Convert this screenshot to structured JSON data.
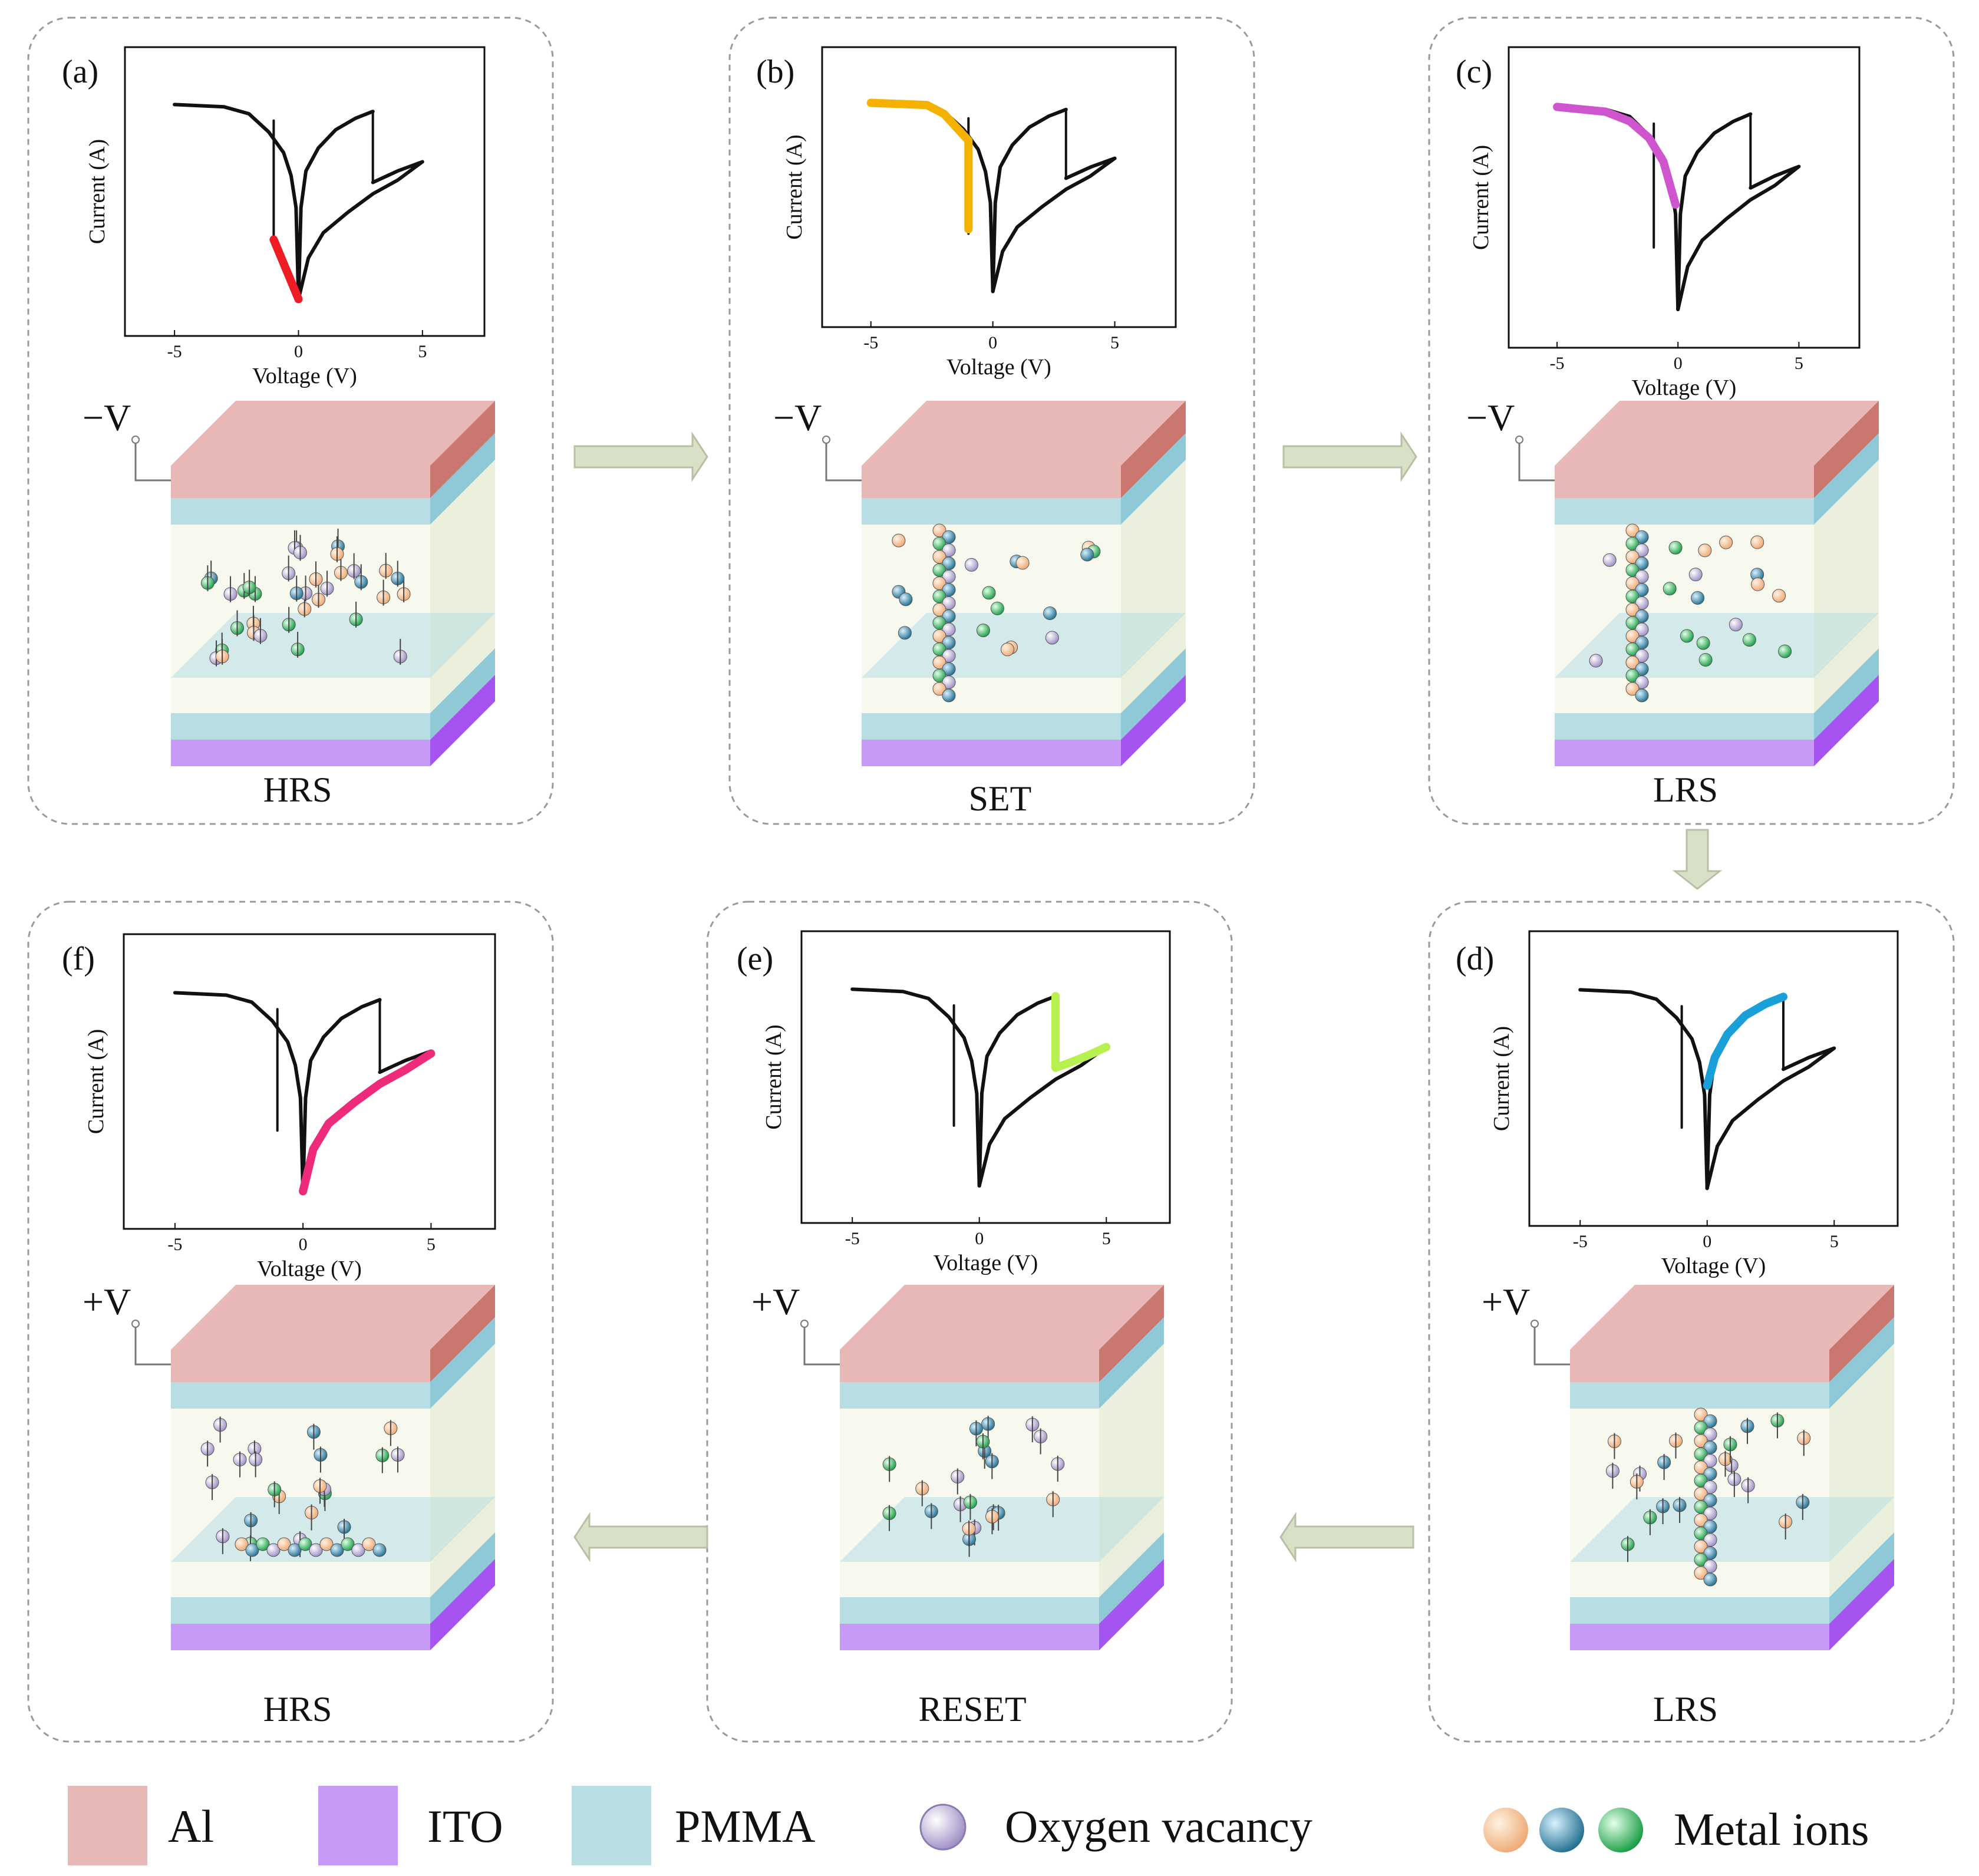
{
  "panels": [
    {
      "letter": "(a)",
      "state": "HRS",
      "bias": "−V",
      "highlight": "#ee1c25",
      "highlight_path": [
        [
          -1,
          -1.2
        ],
        [
          0,
          -2.5
        ]
      ]
    },
    {
      "letter": "(b)",
      "state": "SET",
      "bias": "−V",
      "highlight": "#f5b100",
      "highlight_path": [
        [
          -5,
          1.75
        ],
        [
          -2.7,
          1.7
        ],
        [
          -2.0,
          1.5
        ],
        [
          -1.0,
          0.9
        ],
        [
          -1.0,
          -1.1
        ]
      ]
    },
    {
      "letter": "(c)",
      "state": "LRS",
      "bias": "−V",
      "highlight": "#cf55cf",
      "highlight_path": [
        [
          -5,
          1.75
        ],
        [
          -3,
          1.65
        ],
        [
          -2,
          1.45
        ],
        [
          -1.2,
          1.1
        ],
        [
          -0.6,
          0.6
        ],
        [
          -0.1,
          -0.3
        ]
      ]
    },
    {
      "letter": "(d)",
      "state": "LRS",
      "bias": "+V",
      "highlight": "#1aa0d8",
      "highlight_path": [
        [
          0,
          -0.3
        ],
        [
          0.3,
          0.3
        ],
        [
          0.8,
          0.8
        ],
        [
          1.5,
          1.2
        ],
        [
          2.3,
          1.45
        ],
        [
          3,
          1.6
        ]
      ]
    },
    {
      "letter": "(e)",
      "state": "RESET",
      "bias": "+V",
      "highlight": "#b8f050",
      "highlight_path": [
        [
          3,
          1.6
        ],
        [
          3,
          0.05
        ],
        [
          3.5,
          0.15
        ],
        [
          4.2,
          0.3
        ],
        [
          5,
          0.5
        ]
      ]
    },
    {
      "letter": "(f)",
      "state": "HRS",
      "bias": "+V",
      "highlight": "#ee2a7b",
      "highlight_path": [
        [
          0,
          -2.5
        ],
        [
          0.4,
          -1.6
        ],
        [
          1,
          -1.05
        ],
        [
          2,
          -0.6
        ],
        [
          3,
          -0.2
        ],
        [
          4,
          0.1
        ],
        [
          5,
          0.45
        ]
      ]
    }
  ],
  "axes": {
    "xlabel": "Voltage (V)",
    "ylabel": "Current (A)",
    "xticks": [
      "-5",
      "0",
      "5"
    ],
    "xlim": [
      -7,
      7.5
    ]
  },
  "iv_curve": {
    "negative_branch": [
      [
        -5,
        1.75
      ],
      [
        -3,
        1.7
      ],
      [
        -2,
        1.55
      ],
      [
        -1.2,
        1.15
      ],
      [
        -0.6,
        0.7
      ],
      [
        -0.3,
        0.2
      ],
      [
        -0.1,
        -0.5
      ],
      [
        0,
        -2.5
      ]
    ],
    "set_jump": [
      [
        -1,
        -1.2
      ],
      [
        -1,
        1.4
      ]
    ],
    "positive_branch": [
      [
        0,
        -2.5
      ],
      [
        0.1,
        -0.5
      ],
      [
        0.3,
        0.3
      ],
      [
        0.8,
        0.8
      ],
      [
        1.5,
        1.2
      ],
      [
        2.3,
        1.45
      ],
      [
        3,
        1.6
      ]
    ],
    "reset_jump": [
      [
        3,
        1.6
      ],
      [
        3,
        0.05
      ]
    ],
    "hrs_branch": [
      [
        3,
        0.05
      ],
      [
        4,
        0.3
      ],
      [
        5,
        0.5
      ],
      [
        4,
        0.1
      ],
      [
        3,
        -0.2
      ],
      [
        2,
        -0.6
      ],
      [
        1,
        -1.05
      ],
      [
        0.4,
        -1.6
      ],
      [
        0,
        -2.5
      ]
    ]
  },
  "legend": [
    {
      "label": "Al",
      "color": "#e8b8b6"
    },
    {
      "label": "ITO",
      "color": "#c79af7"
    },
    {
      "label": "PMMA",
      "color": "#b8dde3"
    },
    {
      "label": "Oxygen vacancy",
      "color": "#b8a9d4"
    },
    {
      "label": "Metal ions",
      "colors": [
        "#f3b98c",
        "#2f7fa0",
        "#1fae4e"
      ]
    }
  ],
  "colors": {
    "al": "#e8b8b6",
    "al_side": "#c9776f",
    "pmma": "#b8dde3",
    "pmma_side": "#8fc9d8",
    "ito": "#c79af7",
    "ito_side": "#a654f0",
    "arrow": "#d8e0c8",
    "box": "#9a9a9a"
  }
}
